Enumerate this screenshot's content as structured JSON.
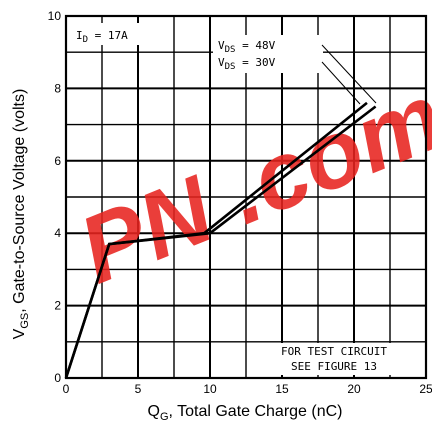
{
  "chart_data": {
    "type": "line",
    "xlabel": "Q",
    "xlabel_sub": "G",
    "xlabel_rest": ", Total Gate Charge (nC)",
    "ylabel": "V",
    "ylabel_sub": "GS",
    "ylabel_rest": ", Gate-to-Source Voltage (volts)",
    "xlim": [
      0,
      25
    ],
    "ylim": [
      0,
      10
    ],
    "x_ticks": [
      "0",
      "5",
      "10",
      "15",
      "20",
      "25"
    ],
    "y_ticks": [
      "0",
      "2",
      "4",
      "6",
      "8",
      "10"
    ],
    "grid": true,
    "series": [
      {
        "name": "VDS = 48V",
        "x": [
          0,
          3,
          10,
          21.5
        ],
        "y": [
          0,
          3.7,
          4.0,
          7.5
        ]
      },
      {
        "name": "VDS = 30V",
        "x": [
          0,
          3,
          9.6,
          20.9
        ],
        "y": [
          0,
          3.7,
          4.0,
          7.6
        ]
      }
    ],
    "annotations": {
      "id": {
        "main": "I",
        "sub": "D",
        "rest": " = 17A"
      },
      "vds1": {
        "main": "V",
        "sub": "DS",
        "rest": " = 48V"
      },
      "vds2": {
        "main": "V",
        "sub": "DS",
        "rest": " = 30V"
      },
      "test_circuit_1": "FOR TEST CIRCUIT",
      "test_circuit_2": "SEE FIGURE 13"
    },
    "watermark": "PN .com"
  }
}
